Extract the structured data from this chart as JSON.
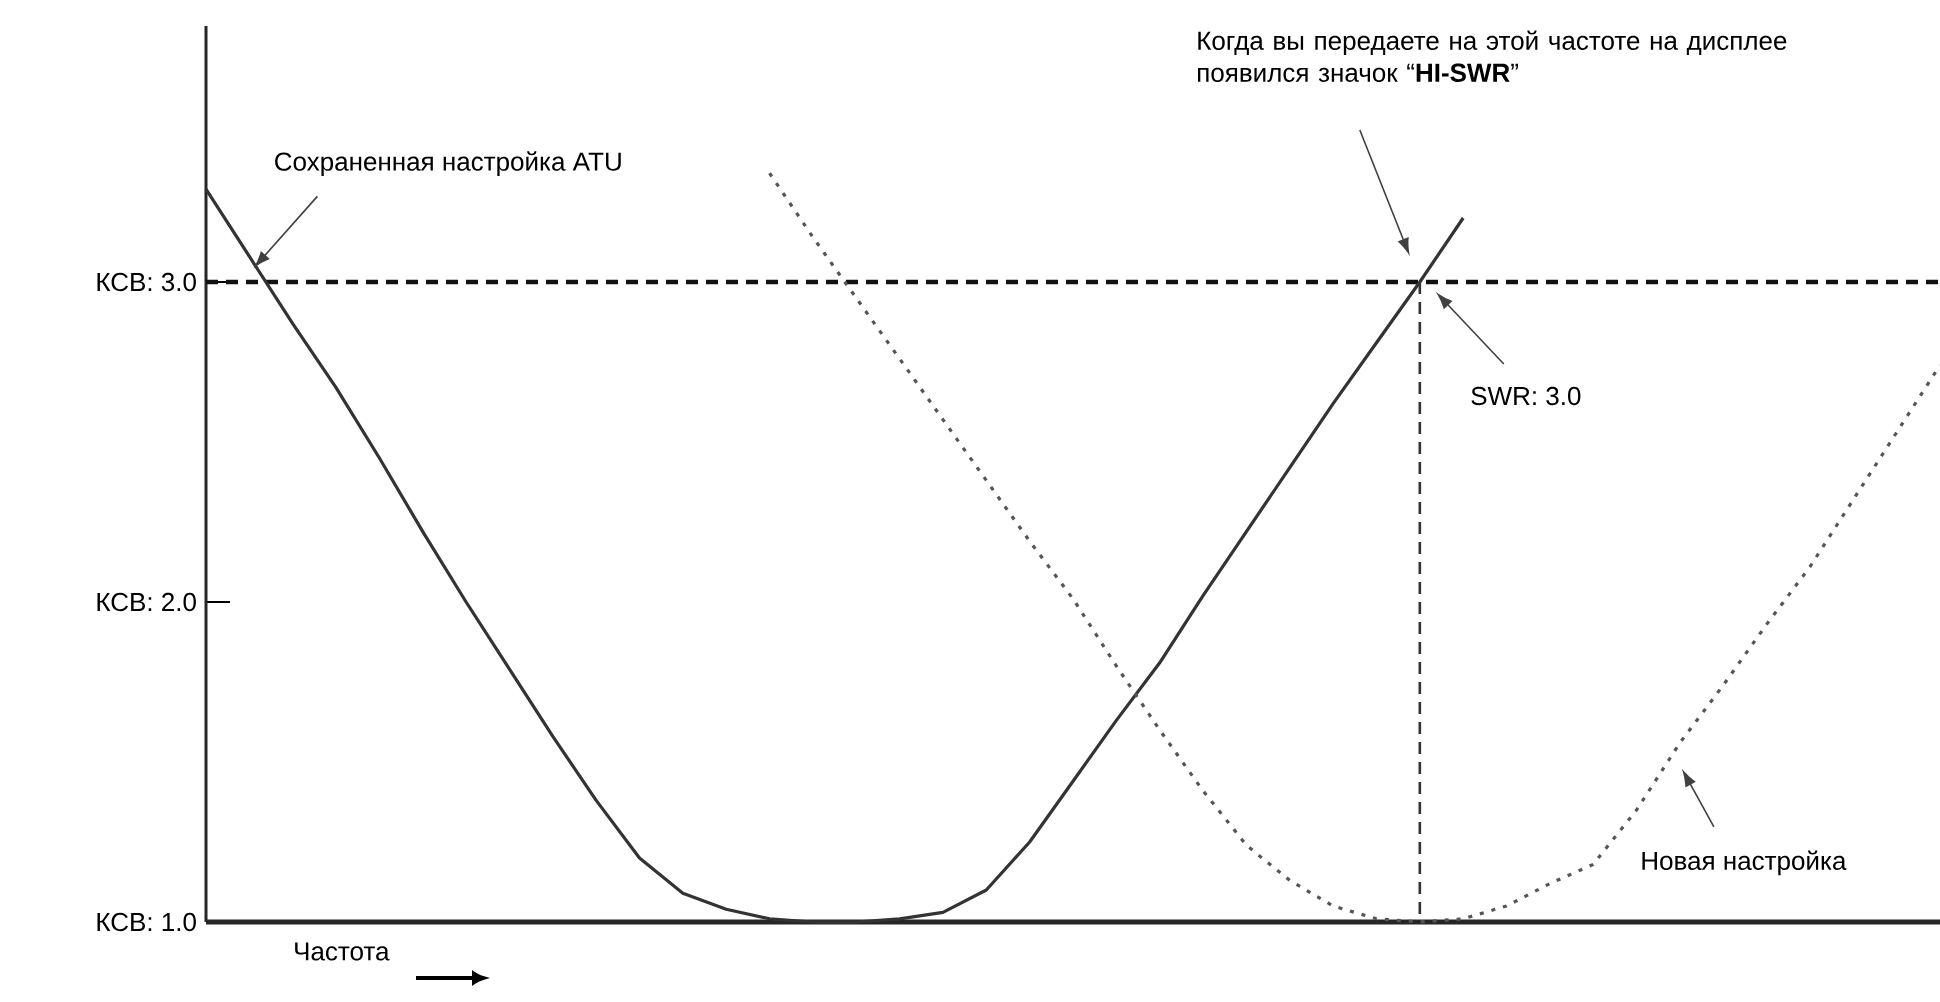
{
  "chart_data": {
    "type": "line",
    "xlabel": "Частота",
    "categories": [
      null,
      null,
      null,
      null,
      null,
      null,
      null,
      null,
      null,
      null,
      null,
      null,
      null,
      null,
      null,
      null,
      null,
      null,
      null,
      null,
      null,
      null,
      null,
      null,
      null,
      null,
      null,
      null,
      null,
      null,
      null,
      null,
      null,
      null,
      null,
      null,
      null,
      null,
      null,
      null,
      null
    ],
    "ylim": [
      1.0,
      3.8
    ],
    "yticks": [
      {
        "value": 1.0,
        "label": "КСВ: 1.0"
      },
      {
        "value": 2.0,
        "label": "КСВ: 2.0"
      },
      {
        "value": 3.0,
        "label": "КСВ: 3.0"
      }
    ],
    "tick_labels": "y",
    "series": [
      {
        "color": "#333333",
        "line_style": "solid",
        "values": [
          3.29,
          3.08,
          2.87,
          2.67,
          2.45,
          2.22,
          2.0,
          1.79,
          1.58,
          1.38,
          1.2,
          1.09,
          1.04,
          1.01,
          1.0,
          1.0,
          1.01,
          1.03,
          1.1,
          1.25,
          1.44,
          1.63,
          1.81,
          2.02,
          2.22,
          2.42,
          2.62,
          2.81,
          3.0,
          3.2,
          null,
          null,
          null,
          null,
          null,
          null,
          null,
          null,
          null,
          null,
          null
        ]
      },
      {
        "color": "#555555",
        "line_style": "dotted",
        "values": [
          null,
          null,
          null,
          null,
          null,
          null,
          null,
          null,
          null,
          null,
          null,
          null,
          null,
          3.34,
          3.14,
          2.95,
          2.76,
          2.57,
          2.38,
          2.19,
          2.01,
          1.8,
          1.6,
          1.41,
          1.24,
          1.13,
          1.05,
          1.01,
          1.0,
          1.01,
          1.05,
          1.12,
          1.18,
          1.35,
          1.56,
          1.74,
          1.93,
          2.11,
          2.32,
          2.53,
          2.74
        ]
      }
    ],
    "ref_lines": [
      {
        "axis": "y",
        "value": 3.0,
        "color": "#111111",
        "line_style": "dashed"
      }
    ],
    "annotations": [
      "Сохраненная настройка ATU",
      "Когда вы передаете на этой частоте на дисплее появился значок “**HI-SWR**”",
      "SWR: 3.0",
      "Новая настройка"
    ]
  }
}
